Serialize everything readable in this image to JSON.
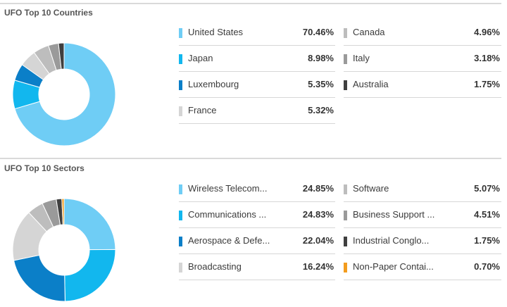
{
  "chart_data": [
    {
      "type": "pie",
      "title": "UFO Top 10 Countries",
      "categories": [
        "United States",
        "Japan",
        "Luxembourg",
        "France",
        "Canada",
        "Italy",
        "Australia"
      ],
      "values": [
        70.46,
        8.98,
        5.35,
        5.32,
        4.96,
        3.18,
        1.75
      ],
      "value_labels": [
        "70.46%",
        "8.98%",
        "5.35%",
        "5.32%",
        "4.96%",
        "3.18%",
        "1.75%"
      ],
      "colors": [
        "#6fcdf5",
        "#12b7ee",
        "#0b7fc8",
        "#d5d5d5",
        "#bdbdbd",
        "#9a9a9a",
        "#3f3f3f"
      ]
    },
    {
      "type": "pie",
      "title": "UFO Top 10 Sectors",
      "categories": [
        "Wireless Telecom...",
        "Communications ...",
        "Aerospace & Defe...",
        "Broadcasting",
        "Software",
        "Business Support ...",
        "Industrial Conglo...",
        "Non-Paper Contai..."
      ],
      "values": [
        24.85,
        24.83,
        22.04,
        16.24,
        5.07,
        4.51,
        1.75,
        0.7
      ],
      "value_labels": [
        "24.85%",
        "24.83%",
        "22.04%",
        "16.24%",
        "5.07%",
        "4.51%",
        "1.75%",
        "0.70%"
      ],
      "colors": [
        "#6fcdf5",
        "#12b7ee",
        "#0b7fc8",
        "#d5d5d5",
        "#bdbdbd",
        "#9a9a9a",
        "#3f3f3f",
        "#f39c1e"
      ]
    }
  ]
}
